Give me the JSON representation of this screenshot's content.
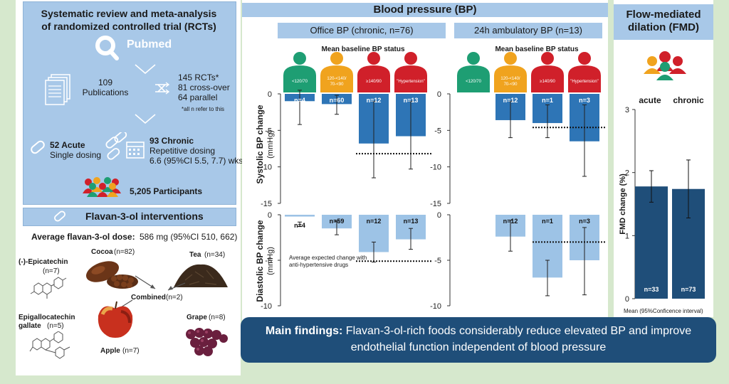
{
  "left": {
    "review_title": "Systematic review and meta-analysis of randomized controlled trial (RCTs)",
    "pubmed_label": "Pubmed",
    "publications_count": "109",
    "publications_label": "Publications",
    "rcts_count": "145 RCTs*",
    "crossover": "81 cross-over",
    "parallel": "64 parallel",
    "footnote": "*all n refer to this",
    "acute_title": "52 Acute",
    "acute_sub": "Single dosing",
    "chronic_title": "93 Chronic",
    "chronic_sub1": "Repetitive dosing",
    "chronic_sub2": "6.6 (95%CI 5.5, 7.7) wks",
    "participants": "5,205 Participants",
    "interventions_title": "Flavan-3-ol interventions",
    "dose_label": "Average flavan-3-ol dose:",
    "dose_value": "586 mg (95%CI 510, 662)",
    "epicatechin": "(-)-Epicatechin",
    "epicatechin_n": "(n=7)",
    "cocoa": "Cocoa",
    "cocoa_n": "(n=82)",
    "tea": "Tea",
    "tea_n": "(n=34)",
    "combined": "Combined",
    "combined_n": "(n=2)",
    "egcg": "Epigallocatechin",
    "egcg2": "gallate",
    "egcg_n": "(n=5)",
    "grape": "Grape",
    "grape_n": "(n=8)",
    "apple": "Apple",
    "apple_n": "(n=7)"
  },
  "bp": {
    "title": "Blood pressure (BP)",
    "office_title": "Office BP (chronic, n=76)",
    "ambulatory_title": "24h ambulatory BP (n=13)",
    "status_title": "Mean baseline BP status",
    "categories": [
      "<120/70",
      "120-<140/\n70-<90",
      "≥140/90",
      "\"Hypertension\""
    ],
    "category_colors": [
      "#1e9e73",
      "#f0a31e",
      "#d0202a",
      "#d0202a"
    ],
    "systolic_ylabel1": "Systolic BP change",
    "diastolic_ylabel1": "Diastolic BP change",
    "ylabel_unit": "(mmHg)",
    "annotation": "Average expected change with anti-hypertensive drugs"
  },
  "fmd": {
    "title": "Flow-mediated dilation (FMD)",
    "col_acute": "acute",
    "col_chronic": "chronic",
    "ylabel": "FMD change (%)",
    "footnote": "Mean (95%Conficence interval)"
  },
  "main_findings": {
    "label": "Main findings:",
    "text": "Flavan-3-ol-rich foods considerably reduce elevated BP and improve endothelial function independent of blood pressure"
  },
  "chart_data": [
    {
      "type": "bar",
      "name": "office-systolic",
      "categories": [
        "<120/70",
        "120-<140/70-<90",
        "≥140/90",
        "\"Hypertension\""
      ],
      "values": [
        -1.0,
        -1.4,
        -6.8,
        -5.8
      ],
      "ci": [
        [
          -4.2,
          0.5
        ],
        [
          -2.8,
          -0.2
        ],
        [
          -11.5,
          -1.0
        ],
        [
          -10.3,
          -1.0
        ]
      ],
      "labels": [
        "n=4",
        "n=60",
        "n=12",
        "n=13"
      ],
      "ylim": [
        -15,
        0
      ],
      "yticks": [
        0,
        -5,
        -10,
        -15
      ],
      "reference_line": -8.2
    },
    {
      "type": "bar",
      "name": "office-diastolic",
      "categories": [
        "<120/70",
        "120-<140/70-<90",
        "≥140/90",
        "\"Hypertension\""
      ],
      "values": [
        -0.2,
        -1.5,
        -4.1,
        -2.7
      ],
      "ci": [
        [
          -1.3,
          -0.8
        ],
        [
          -2.2,
          -0.7
        ],
        [
          -5.2,
          -3.0
        ],
        [
          -3.8,
          -1.5
        ]
      ],
      "labels": [
        "n=4",
        "n=59",
        "n=12",
        "n=13"
      ],
      "ylim": [
        -10,
        0
      ],
      "yticks": [
        0,
        -5,
        -10
      ],
      "reference_line": -5.1
    },
    {
      "type": "bar",
      "name": "ambulatory-systolic",
      "categories": [
        "<120/70",
        "120-<140/70-<90",
        "≥140/90",
        "\"Hypertension\""
      ],
      "values": [
        null,
        -3.6,
        -4.0,
        -6.5
      ],
      "ci": [
        null,
        [
          -6.0,
          -1.0
        ],
        [
          -6.0,
          -1.5
        ],
        [
          -11.3,
          -1.5
        ]
      ],
      "labels": [
        "",
        "n=12",
        "n=1",
        "n=3"
      ],
      "ylim": [
        -15,
        0
      ],
      "yticks": [
        0,
        -5,
        -10,
        -15
      ],
      "reference_line": -4.6
    },
    {
      "type": "bar",
      "name": "ambulatory-diastolic",
      "categories": [
        "<120/70",
        "120-<140/70-<90",
        "≥140/90",
        "\"Hypertension\""
      ],
      "values": [
        null,
        -2.4,
        -6.9,
        -5.0
      ],
      "ci": [
        null,
        [
          -4.0,
          -0.6
        ],
        [
          -8.9,
          -5.0
        ],
        [
          -8.8,
          -1.4
        ]
      ],
      "labels": [
        "",
        "n=12",
        "n=1",
        "n=3"
      ],
      "ylim": [
        -10,
        0
      ],
      "yticks": [
        0,
        -5,
        -10
      ],
      "reference_line": -3.0
    },
    {
      "type": "bar",
      "name": "fmd",
      "categories": [
        "acute",
        "chronic"
      ],
      "values": [
        1.78,
        1.74
      ],
      "ci": [
        [
          1.53,
          2.03
        ],
        [
          1.28,
          2.2
        ]
      ],
      "labels": [
        "n=33",
        "n=73"
      ],
      "ylim": [
        0,
        3
      ],
      "yticks": [
        0,
        1,
        2,
        3
      ],
      "ylabel": "FMD change (%)"
    }
  ]
}
